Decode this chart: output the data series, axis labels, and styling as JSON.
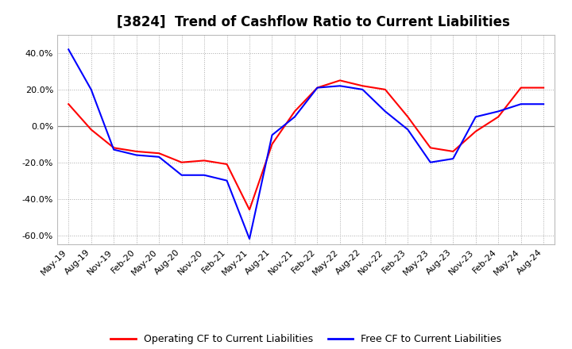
{
  "title": "[3824]  Trend of Cashflow Ratio to Current Liabilities",
  "x_labels": [
    "May-19",
    "Aug-19",
    "Nov-19",
    "Feb-20",
    "May-20",
    "Aug-20",
    "Nov-20",
    "Feb-21",
    "May-21",
    "Aug-21",
    "Nov-21",
    "Feb-22",
    "May-22",
    "Aug-22",
    "Nov-22",
    "Feb-23",
    "May-23",
    "Aug-23",
    "Nov-23",
    "Feb-24",
    "May-24",
    "Aug-24"
  ],
  "operating_cf": [
    12.0,
    -2.0,
    -12.0,
    -14.0,
    -15.0,
    -20.0,
    -19.0,
    -21.0,
    -46.0,
    -10.0,
    8.0,
    21.0,
    25.0,
    22.0,
    20.0,
    5.0,
    -12.0,
    -14.0,
    -3.0,
    5.0,
    21.0,
    21.0
  ],
  "free_cf": [
    42.0,
    20.0,
    -13.0,
    -16.0,
    -17.0,
    -27.0,
    -27.0,
    -30.0,
    -62.0,
    -5.0,
    5.0,
    21.0,
    22.0,
    20.0,
    8.0,
    -2.0,
    -20.0,
    -18.0,
    5.0,
    8.0,
    12.0,
    12.0
  ],
  "operating_color": "#ff0000",
  "free_color": "#0000ff",
  "ylim": [
    -65,
    50
  ],
  "yticks": [
    -60.0,
    -40.0,
    -20.0,
    0.0,
    20.0,
    40.0
  ],
  "background_color": "#ffffff",
  "plot_bg_color": "#ffffff",
  "grid_color": "#aaaaaa",
  "legend_op": "Operating CF to Current Liabilities",
  "legend_free": "Free CF to Current Liabilities",
  "title_fontsize": 12,
  "tick_fontsize": 8,
  "legend_fontsize": 9
}
